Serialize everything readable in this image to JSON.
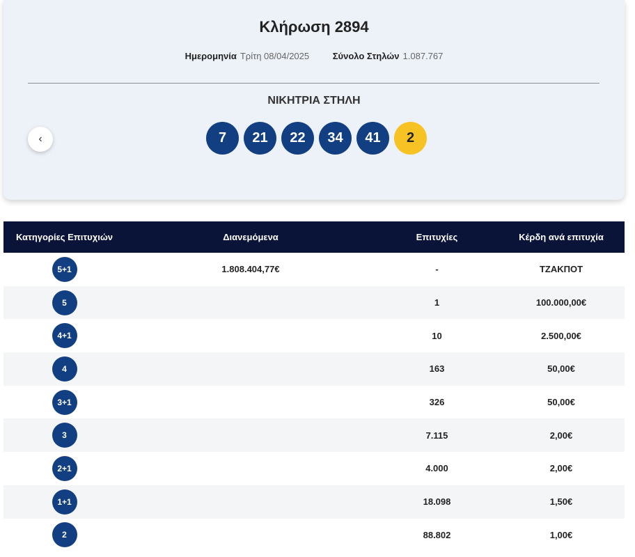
{
  "header": {
    "title": "Κλήρωση 2894",
    "date_label": "Ημερομηνία",
    "date_value": "Τρίτη 08/04/2025",
    "total_label": "Σύνολο Στηλών",
    "total_value": "1.087.767",
    "winning_label": "ΝΙΚΗΤΡΙΑ ΣΤΗΛΗ",
    "numbers": [
      "7",
      "21",
      "22",
      "34",
      "41"
    ],
    "joker": "2"
  },
  "table": {
    "columns": [
      "Κατηγορίες Επιτυχιών",
      "Διανεμόμενα",
      "Επιτυχίες",
      "Κέρδη ανά επιτυχία"
    ],
    "rows": [
      {
        "category": "5+1",
        "distributed": "1.808.404,77€",
        "winners": "-",
        "prize": "ΤΖΑΚΠΟΤ"
      },
      {
        "category": "5",
        "winners": "1",
        "prize": "100.000,00€"
      },
      {
        "category": "4+1",
        "winners": "10",
        "prize": "2.500,00€"
      },
      {
        "category": "4",
        "winners": "163",
        "prize": "50,00€"
      },
      {
        "category": "3+1",
        "winners": "326",
        "prize": "50,00€"
      },
      {
        "category": "3",
        "winners": "7.115",
        "prize": "2,00€"
      },
      {
        "category": "2+1",
        "winners": "4.000",
        "prize": "2,00€"
      },
      {
        "category": "1+1",
        "winners": "18.098",
        "prize": "1,50€"
      },
      {
        "category": "2",
        "winners": "88.802",
        "prize": "1,00€"
      }
    ]
  }
}
